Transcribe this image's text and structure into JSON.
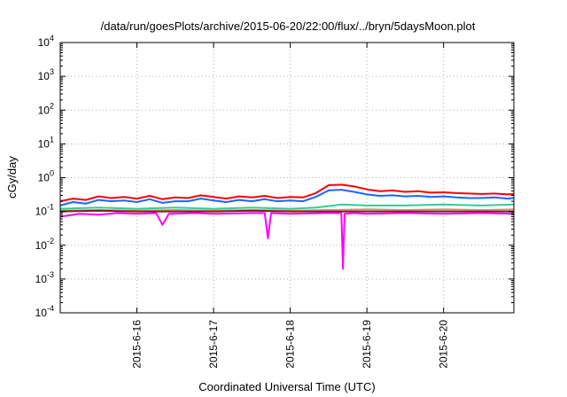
{
  "chart_data": {
    "type": "line",
    "title": "/data/run/goesPlots/archive/2015-06-20/22:00/flux/../bryn/5daysMoon.plot",
    "xlabel": "Coordinated Universal Time (UTC)",
    "ylabel": "cGy/day",
    "yscale": "log",
    "ylim": [
      0.0001,
      10000
    ],
    "xlim": [
      "2015-06-15T00:00",
      "2015-06-20T22:00"
    ],
    "grid": true,
    "yticks": [
      {
        "base": "10",
        "exp": "-4",
        "value": 0.0001
      },
      {
        "base": "10",
        "exp": "-3",
        "value": 0.001
      },
      {
        "base": "10",
        "exp": "-2",
        "value": 0.01
      },
      {
        "base": "10",
        "exp": "-1",
        "value": 0.1
      },
      {
        "base": "10",
        "exp": "0",
        "value": 1
      },
      {
        "base": "10",
        "exp": "1",
        "value": 10
      },
      {
        "base": "10",
        "exp": "2",
        "value": 100
      },
      {
        "base": "10",
        "exp": "3",
        "value": 1000
      },
      {
        "base": "10",
        "exp": "4",
        "value": 10000
      }
    ],
    "xticks": [
      {
        "label": "2015-6-16",
        "value": "2015-06-16T00:00"
      },
      {
        "label": "2015-6-17",
        "value": "2015-06-17T00:00"
      },
      {
        "label": "2015-6-18",
        "value": "2015-06-18T00:00"
      },
      {
        "label": "2015-6-19",
        "value": "2015-06-19T00:00"
      },
      {
        "label": "2015-6-20",
        "value": "2015-06-20T00:00"
      }
    ],
    "series": [
      {
        "color": "#ff0000",
        "x": [
          "2015-06-15T00:00",
          "2015-06-15T04:00",
          "2015-06-15T08:00",
          "2015-06-15T12:00",
          "2015-06-15T16:00",
          "2015-06-15T20:00",
          "2015-06-16T00:00",
          "2015-06-16T04:00",
          "2015-06-16T08:00",
          "2015-06-16T12:00",
          "2015-06-16T16:00",
          "2015-06-16T20:00",
          "2015-06-17T00:00",
          "2015-06-17T04:00",
          "2015-06-17T08:00",
          "2015-06-17T12:00",
          "2015-06-17T16:00",
          "2015-06-17T20:00",
          "2015-06-18T00:00",
          "2015-06-18T04:00",
          "2015-06-18T08:00",
          "2015-06-18T12:00",
          "2015-06-18T16:00",
          "2015-06-18T20:00",
          "2015-06-19T00:00",
          "2015-06-19T04:00",
          "2015-06-19T08:00",
          "2015-06-19T12:00",
          "2015-06-19T16:00",
          "2015-06-19T20:00",
          "2015-06-20T00:00",
          "2015-06-20T04:00",
          "2015-06-20T08:00",
          "2015-06-20T12:00",
          "2015-06-20T16:00",
          "2015-06-20T20:00",
          "2015-06-20T22:00"
        ],
        "values": [
          0.2,
          0.24,
          0.22,
          0.28,
          0.25,
          0.27,
          0.24,
          0.29,
          0.23,
          0.26,
          0.25,
          0.3,
          0.27,
          0.24,
          0.28,
          0.26,
          0.29,
          0.25,
          0.27,
          0.26,
          0.35,
          0.6,
          0.62,
          0.55,
          0.45,
          0.4,
          0.42,
          0.38,
          0.4,
          0.36,
          0.37,
          0.35,
          0.34,
          0.33,
          0.34,
          0.32,
          0.33
        ]
      },
      {
        "color": "#1a66ff",
        "x": [
          "2015-06-15T00:00",
          "2015-06-15T04:00",
          "2015-06-15T08:00",
          "2015-06-15T12:00",
          "2015-06-15T16:00",
          "2015-06-15T20:00",
          "2015-06-16T00:00",
          "2015-06-16T04:00",
          "2015-06-16T08:00",
          "2015-06-16T12:00",
          "2015-06-16T16:00",
          "2015-06-16T20:00",
          "2015-06-17T00:00",
          "2015-06-17T04:00",
          "2015-06-17T08:00",
          "2015-06-17T12:00",
          "2015-06-17T16:00",
          "2015-06-17T20:00",
          "2015-06-18T00:00",
          "2015-06-18T04:00",
          "2015-06-18T08:00",
          "2015-06-18T12:00",
          "2015-06-18T16:00",
          "2015-06-18T20:00",
          "2015-06-19T00:00",
          "2015-06-19T04:00",
          "2015-06-19T08:00",
          "2015-06-19T12:00",
          "2015-06-19T16:00",
          "2015-06-19T20:00",
          "2015-06-20T00:00",
          "2015-06-20T04:00",
          "2015-06-20T08:00",
          "2015-06-20T12:00",
          "2015-06-20T16:00",
          "2015-06-20T20:00",
          "2015-06-20T22:00"
        ],
        "values": [
          0.15,
          0.19,
          0.17,
          0.22,
          0.2,
          0.21,
          0.19,
          0.23,
          0.18,
          0.2,
          0.2,
          0.24,
          0.21,
          0.19,
          0.22,
          0.2,
          0.23,
          0.2,
          0.21,
          0.2,
          0.27,
          0.42,
          0.44,
          0.38,
          0.32,
          0.29,
          0.3,
          0.28,
          0.29,
          0.27,
          0.28,
          0.26,
          0.25,
          0.25,
          0.26,
          0.24,
          0.25
        ]
      },
      {
        "color": "#33cc99",
        "x": [
          "2015-06-15T00:00",
          "2015-06-15T12:00",
          "2015-06-16T00:00",
          "2015-06-16T12:00",
          "2015-06-17T00:00",
          "2015-06-17T12:00",
          "2015-06-18T00:00",
          "2015-06-18T08:00",
          "2015-06-18T16:00",
          "2015-06-19T00:00",
          "2015-06-19T12:00",
          "2015-06-20T00:00",
          "2015-06-20T12:00",
          "2015-06-20T22:00"
        ],
        "values": [
          0.12,
          0.13,
          0.12,
          0.13,
          0.12,
          0.13,
          0.12,
          0.13,
          0.16,
          0.15,
          0.15,
          0.16,
          0.15,
          0.16
        ]
      },
      {
        "color": "#cc9966",
        "x": [
          "2015-06-15T00:00",
          "2015-06-15T12:00",
          "2015-06-16T00:00",
          "2015-06-16T12:00",
          "2015-06-17T00:00",
          "2015-06-17T12:00",
          "2015-06-18T00:00",
          "2015-06-18T12:00",
          "2015-06-19T00:00",
          "2015-06-19T12:00",
          "2015-06-20T00:00",
          "2015-06-20T12:00",
          "2015-06-20T22:00"
        ],
        "values": [
          0.105,
          0.11,
          0.105,
          0.11,
          0.105,
          0.11,
          0.105,
          0.11,
          0.115,
          0.11,
          0.115,
          0.11,
          0.115
        ]
      },
      {
        "color": "#7a1f1f",
        "x": [
          "2015-06-15T00:00",
          "2015-06-15T12:00",
          "2015-06-16T00:00",
          "2015-06-16T12:00",
          "2015-06-17T00:00",
          "2015-06-17T12:00",
          "2015-06-18T00:00",
          "2015-06-18T12:00",
          "2015-06-19T00:00",
          "2015-06-19T12:00",
          "2015-06-20T00:00",
          "2015-06-20T12:00",
          "2015-06-20T22:00"
        ],
        "values": [
          0.1,
          0.105,
          0.1,
          0.1,
          0.1,
          0.105,
          0.1,
          0.1,
          0.1,
          0.1,
          0.1,
          0.1,
          0.1
        ]
      },
      {
        "color": "#ff00ff",
        "x": [
          "2015-06-15T00:00",
          "2015-06-15T06:00",
          "2015-06-15T12:00",
          "2015-06-15T18:00",
          "2015-06-16T00:00",
          "2015-06-16T06:00",
          "2015-06-16T08:00",
          "2015-06-16T10:00",
          "2015-06-16T18:00",
          "2015-06-17T00:00",
          "2015-06-17T12:00",
          "2015-06-17T16:00",
          "2015-06-17T17:00",
          "2015-06-17T18:00",
          "2015-06-18T00:00",
          "2015-06-18T12:00",
          "2015-06-18T16:00",
          "2015-06-18T16:30",
          "2015-06-18T17:00",
          "2015-06-18T20:00",
          "2015-06-19T00:00",
          "2015-06-19T12:00",
          "2015-06-20T00:00",
          "2015-06-20T12:00",
          "2015-06-20T22:00"
        ],
        "values": [
          0.07,
          0.085,
          0.08,
          0.09,
          0.085,
          0.09,
          0.04,
          0.085,
          0.09,
          0.085,
          0.09,
          0.09,
          0.016,
          0.09,
          0.085,
          0.09,
          0.09,
          0.002,
          0.085,
          0.09,
          0.085,
          0.09,
          0.085,
          0.09,
          0.085
        ]
      }
    ]
  }
}
